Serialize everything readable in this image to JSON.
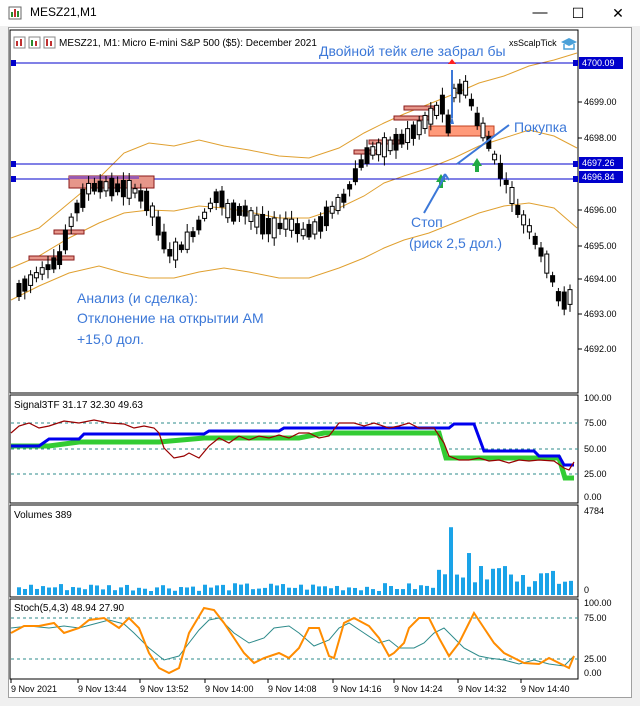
{
  "window": {
    "title": "MESZ21,M1",
    "minimize_glyph": "—",
    "maximize_glyph": "☐",
    "close_glyph": "✕"
  },
  "chart": {
    "header_symbol": "MESZ21, M1:",
    "header_desc": "Micro E-mini S&P 500 ($5): December 2021",
    "plugin": "xsScalpTick",
    "price_ticks": [
      "4699.00",
      "4698.00",
      "4696.00",
      "4695.00",
      "4694.00",
      "4693.00",
      "4692.00"
    ],
    "hline_labels": [
      "4700.09",
      "4697.26",
      "4696.84"
    ],
    "annotations": {
      "take": "Двойной тейк еле забрал бы",
      "buy": "Покупка",
      "stop_1": "Стоп",
      "stop_2": "(риск 2,5 дол.)",
      "analysis_1": "Анализ (и сделка):",
      "analysis_2": "Отклонение на открытии АМ",
      "analysis_3": "+15,0 дол."
    }
  },
  "signal": {
    "label": "Signal3TF 31.17 32.30 49.63",
    "ticks": [
      "100.00",
      "75.00",
      "50.00",
      "25.00",
      "0.00"
    ]
  },
  "volumes": {
    "label": "Volumes 389",
    "ticks": [
      "4784",
      "0"
    ]
  },
  "stoch": {
    "label": "Stoch(5,4,3) 48.94 27.90",
    "ticks": [
      "100.00",
      "75.00",
      "25.00",
      "0.00"
    ]
  },
  "time_axis": [
    "9 Nov 2021",
    "9 Nov 13:44",
    "9 Nov 13:52",
    "9 Nov 14:00",
    "9 Nov 14:08",
    "9 Nov 14:16",
    "9 Nov 14:24",
    "9 Nov 14:32",
    "9 Nov 14:40"
  ],
  "colors": {
    "bull": "#ffffff",
    "bear": "#000000",
    "hline": "#0000cc",
    "bands": "#e0a030",
    "blue_line": "#0000ee",
    "green_line": "#33cc33",
    "maroon_line": "#990000",
    "volume": "#1aa3e8",
    "stoch_main": "#ff8c00",
    "stoch_signal": "#2e8b8b",
    "annot": "#3c78d8"
  }
}
